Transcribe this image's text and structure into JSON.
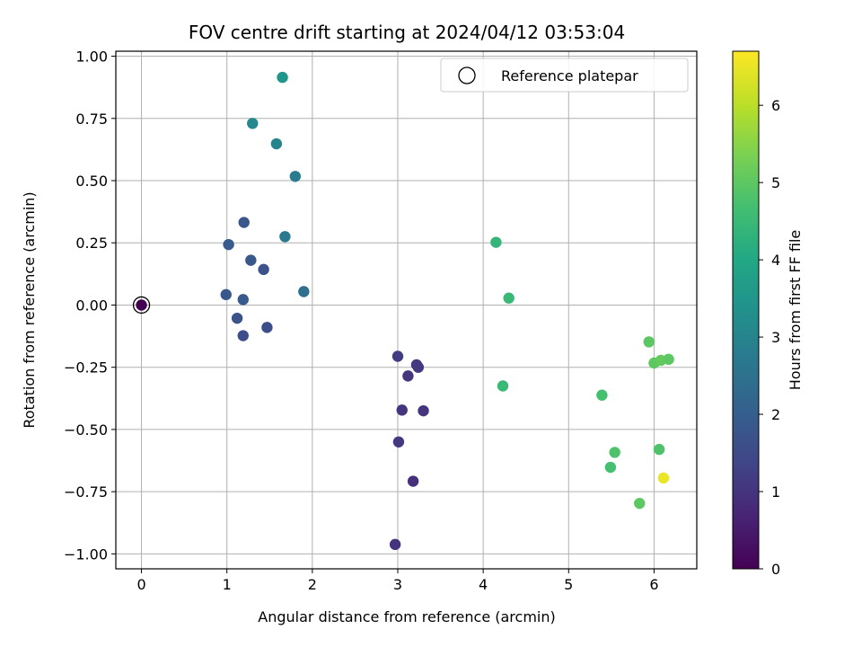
{
  "chart_data": {
    "type": "scatter",
    "title": "FOV centre drift starting at 2024/04/12 03:53:04",
    "xlabel": "Angular distance from reference (arcmin)",
    "ylabel": "Rotation from reference (arcmin)",
    "xlim": [
      -0.3,
      6.5
    ],
    "ylim": [
      -1.06,
      1.02
    ],
    "xticks": [
      0,
      1,
      2,
      3,
      4,
      5,
      6
    ],
    "xtick_labels": [
      "0",
      "1",
      "2",
      "3",
      "4",
      "5",
      "6"
    ],
    "yticks": [
      1.0,
      0.75,
      0.5,
      0.25,
      0.0,
      -0.25,
      -0.5,
      -0.75,
      -1.0
    ],
    "ytick_labels": [
      "1.00",
      "0.75",
      "0.50",
      "0.25",
      "0.00",
      "−0.25",
      "−0.50",
      "−0.75",
      "−1.00"
    ],
    "grid": true,
    "legend": {
      "position": "top-right",
      "entries": [
        "Reference platepar"
      ]
    },
    "reference_point": {
      "x": 0.0,
      "y": 0.0
    },
    "colorbar": {
      "label": "Hours from first FF file",
      "colormap": "viridis",
      "range": [
        0,
        6.7
      ],
      "ticks": [
        0,
        1,
        2,
        3,
        4,
        5,
        6
      ],
      "tick_labels": [
        "0",
        "1",
        "2",
        "3",
        "4",
        "5",
        "6"
      ]
    },
    "points": [
      {
        "x": 0.0,
        "y": 0.0,
        "hours": 0.0
      },
      {
        "x": 1.65,
        "y": 0.915,
        "hours": 3.5
      },
      {
        "x": 1.3,
        "y": 0.73,
        "hours": 3.1
      },
      {
        "x": 1.58,
        "y": 0.648,
        "hours": 3.0
      },
      {
        "x": 1.8,
        "y": 0.517,
        "hours": 2.8
      },
      {
        "x": 1.68,
        "y": 0.275,
        "hours": 2.7
      },
      {
        "x": 1.9,
        "y": 0.054,
        "hours": 2.5
      },
      {
        "x": 1.2,
        "y": 0.332,
        "hours": 1.8
      },
      {
        "x": 1.02,
        "y": 0.243,
        "hours": 1.9
      },
      {
        "x": 1.28,
        "y": 0.18,
        "hours": 1.8
      },
      {
        "x": 1.43,
        "y": 0.143,
        "hours": 1.7
      },
      {
        "x": 0.99,
        "y": 0.042,
        "hours": 1.8
      },
      {
        "x": 1.19,
        "y": 0.022,
        "hours": 1.9
      },
      {
        "x": 1.12,
        "y": -0.053,
        "hours": 1.7
      },
      {
        "x": 1.47,
        "y": -0.09,
        "hours": 1.6
      },
      {
        "x": 1.19,
        "y": -0.123,
        "hours": 1.6
      },
      {
        "x": 3.0,
        "y": -0.206,
        "hours": 1.2
      },
      {
        "x": 3.22,
        "y": -0.24,
        "hours": 1.1
      },
      {
        "x": 3.24,
        "y": -0.25,
        "hours": 1.1
      },
      {
        "x": 3.12,
        "y": -0.285,
        "hours": 1.0
      },
      {
        "x": 3.05,
        "y": -0.422,
        "hours": 1.0
      },
      {
        "x": 3.3,
        "y": -0.425,
        "hours": 1.0
      },
      {
        "x": 3.01,
        "y": -0.55,
        "hours": 1.1
      },
      {
        "x": 3.18,
        "y": -0.708,
        "hours": 0.9
      },
      {
        "x": 2.97,
        "y": -0.962,
        "hours": 1.0
      },
      {
        "x": 4.15,
        "y": 0.252,
        "hours": 4.4
      },
      {
        "x": 4.3,
        "y": 0.028,
        "hours": 4.5
      },
      {
        "x": 4.23,
        "y": -0.325,
        "hours": 4.5
      },
      {
        "x": 5.39,
        "y": -0.362,
        "hours": 4.7
      },
      {
        "x": 5.94,
        "y": -0.148,
        "hours": 5.0
      },
      {
        "x": 6.0,
        "y": -0.233,
        "hours": 5.0
      },
      {
        "x": 6.08,
        "y": -0.222,
        "hours": 5.1
      },
      {
        "x": 6.17,
        "y": -0.218,
        "hours": 5.0
      },
      {
        "x": 5.54,
        "y": -0.592,
        "hours": 4.8
      },
      {
        "x": 5.49,
        "y": -0.652,
        "hours": 4.7
      },
      {
        "x": 6.06,
        "y": -0.58,
        "hours": 4.8
      },
      {
        "x": 5.83,
        "y": -0.797,
        "hours": 5.0
      },
      {
        "x": 6.11,
        "y": -0.695,
        "hours": 6.5
      }
    ]
  }
}
